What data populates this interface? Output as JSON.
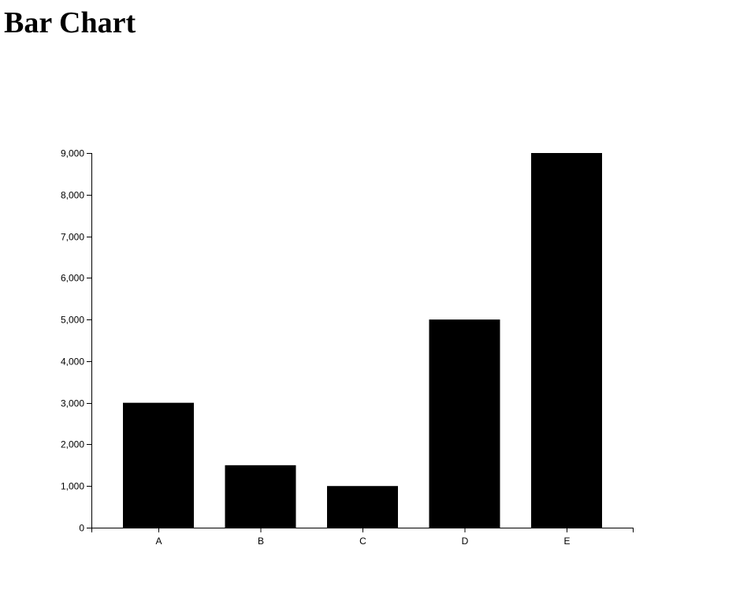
{
  "page": {
    "title": "Bar Chart"
  },
  "chart_data": {
    "type": "bar",
    "title": "Bar Chart",
    "categories": [
      "A",
      "B",
      "C",
      "D",
      "E"
    ],
    "values": [
      3000,
      1500,
      1000,
      5000,
      9000
    ],
    "xlabel": "",
    "ylabel": "",
    "ylim": [
      0,
      9000
    ],
    "yticks": [
      0,
      1000,
      2000,
      3000,
      4000,
      5000,
      6000,
      7000,
      8000,
      9000
    ],
    "ytick_labels": [
      "0",
      "1,000",
      "2,000",
      "3,000",
      "4,000",
      "5,000",
      "6,000",
      "7,000",
      "8,000",
      "9,000"
    ],
    "grid": false,
    "legend": "none",
    "colors": {
      "bar": "#000000",
      "axis": "#000000",
      "background": "#ffffff"
    }
  }
}
